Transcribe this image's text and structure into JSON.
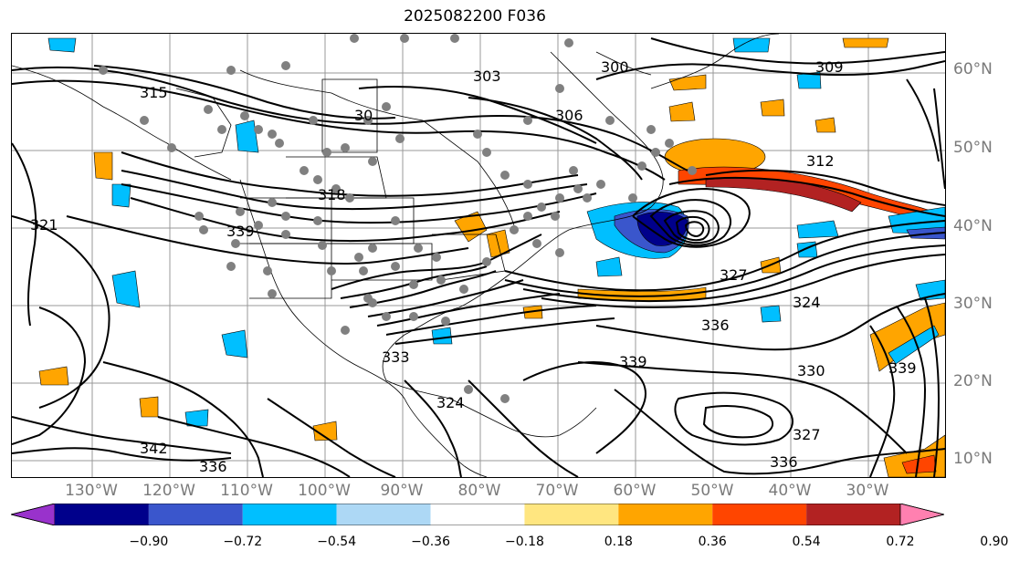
{
  "title": "2025082200 F036",
  "lat_labels": [
    "60°N",
    "50°N",
    "40°N",
    "30°N",
    "20°N",
    "10°N"
  ],
  "lon_labels": [
    "130°W",
    "120°W",
    "110°W",
    "100°W",
    "90°W",
    "80°W",
    "70°W",
    "60°W",
    "50°W",
    "40°W",
    "30°W"
  ],
  "contour_labels": [
    "300",
    "303",
    "306",
    "309",
    "312",
    "315",
    "318",
    "321",
    "324",
    "327",
    "330",
    "333",
    "336",
    "339",
    "342"
  ],
  "colorbar": {
    "ticks": [
      "−0.90",
      "−0.72",
      "−0.54",
      "−0.36",
      "−0.18",
      "0.18",
      "0.36",
      "0.54",
      "0.72",
      "0.90"
    ],
    "colors": [
      "#9932cc",
      "#00008b",
      "#3a56cc",
      "#00bfff",
      "#add8f5",
      "#ffffff",
      "#ffe680",
      "#ffa500",
      "#ff4500",
      "#b22222",
      "#ff80b0"
    ]
  },
  "colors": {
    "contour": "#000000",
    "grid": "#999999",
    "axis_label": "#7a7a7a",
    "station_dot": "#808080"
  }
}
